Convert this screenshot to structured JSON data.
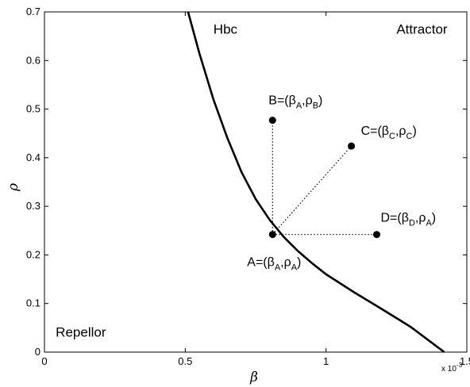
{
  "chart_data": {
    "type": "line",
    "xlabel": "β",
    "ylabel": "ρ",
    "xlim": [
      0,
      1.5
    ],
    "ylim": [
      0,
      0.7
    ],
    "x_multiplier": "x 10",
    "x_multiplier_exp": "-3",
    "x_ticks": [
      "0",
      "0.5",
      "1",
      "1.5"
    ],
    "y_ticks": [
      "0",
      "0.1",
      "0.2",
      "0.3",
      "0.4",
      "0.5",
      "0.6",
      "0.7"
    ],
    "grid": false,
    "curve": {
      "name": "Hbc",
      "x": [
        0.51,
        0.55,
        0.6,
        0.65,
        0.7,
        0.75,
        0.8,
        0.85,
        0.9,
        0.95,
        1.0,
        1.1,
        1.2,
        1.3,
        1.42
      ],
      "y": [
        0.7,
        0.615,
        0.52,
        0.44,
        0.37,
        0.315,
        0.272,
        0.237,
        0.208,
        0.183,
        0.16,
        0.123,
        0.088,
        0.052,
        0.0
      ]
    },
    "regions": [
      {
        "label": "Hbc",
        "x": 0.6,
        "y": 0.655
      },
      {
        "label": "Attractor",
        "x": 1.25,
        "y": 0.655
      },
      {
        "label": "Repellor",
        "x": 0.04,
        "y": 0.032
      }
    ],
    "points": [
      {
        "id": "A",
        "x": 0.81,
        "y": 0.242,
        "label": [
          "A=(β",
          "A",
          ",ρ",
          "A",
          ")"
        ]
      },
      {
        "id": "B",
        "x": 0.81,
        "y": 0.477,
        "label": [
          "B=(β",
          "A",
          ",ρ",
          "B",
          ")"
        ]
      },
      {
        "id": "C",
        "x": 1.09,
        "y": 0.424,
        "label": [
          "C=(β",
          "C",
          ",ρ",
          "C",
          ")"
        ]
      },
      {
        "id": "D",
        "x": 1.18,
        "y": 0.242,
        "label": [
          "D=(β",
          "D",
          ",ρ",
          "A",
          ")"
        ]
      }
    ],
    "connections": [
      [
        "A",
        "B"
      ],
      [
        "A",
        "C"
      ],
      [
        "A",
        "D"
      ]
    ]
  }
}
